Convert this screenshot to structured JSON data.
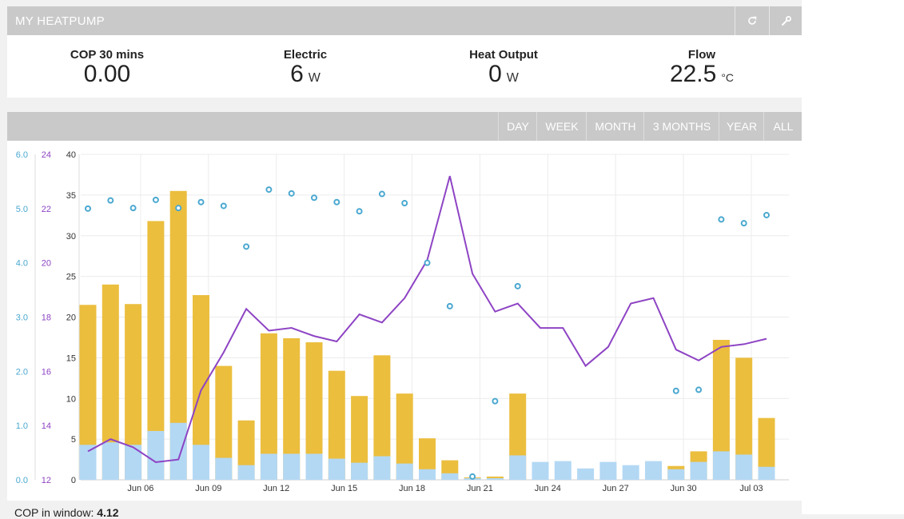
{
  "header": {
    "title": "MY HEATPUMP",
    "refresh_icon": "refresh-icon",
    "settings_icon": "wrench-icon"
  },
  "stats": [
    {
      "label": "COP 30 mins",
      "value": "0.00",
      "unit": ""
    },
    {
      "label": "Electric",
      "value": "6",
      "unit": "W"
    },
    {
      "label": "Heat Output",
      "value": "0",
      "unit": "W"
    },
    {
      "label": "Flow",
      "value": "22.5",
      "unit": "°C"
    }
  ],
  "ranges": [
    "DAY",
    "WEEK",
    "MONTH",
    "3 MONTHS",
    "YEAR",
    "ALL"
  ],
  "footer": {
    "label": "COP in window:",
    "value": "4.12"
  },
  "colors": {
    "heat": "#ebbe3e",
    "electric": "#b3d8f4",
    "cop": "#4aa8d0",
    "flow": "#8e44c4",
    "axis_cop": "#4aa8d0",
    "axis_flow": "#8e44c4"
  },
  "chart_data": {
    "type": "bar",
    "x_tick_labels": [
      "Jun 06",
      "Jun 09",
      "Jun 12",
      "Jun 15",
      "Jun 18",
      "Jun 21",
      "Jun 24",
      "Jun 27",
      "Jun 30",
      "Jul 03"
    ],
    "x_tick_positions": [
      3,
      6,
      9,
      12,
      15,
      18,
      21,
      24,
      27,
      30
    ],
    "y_kwh": {
      "ticks": [
        0,
        5,
        10,
        15,
        20,
        25,
        30,
        35,
        40
      ],
      "range": [
        0,
        40
      ]
    },
    "y_flow": {
      "ticks": [
        12,
        14,
        16,
        18,
        20,
        22,
        24
      ],
      "range": [
        12,
        24
      ]
    },
    "y_cop": {
      "ticks": [
        "0.0",
        "1.0",
        "2.0",
        "3.0",
        "4.0",
        "5.0",
        "6.0"
      ],
      "range": [
        0,
        6
      ]
    },
    "days": [
      0,
      1,
      2,
      3,
      4,
      5,
      6,
      7,
      8,
      9,
      10,
      11,
      12,
      13,
      14,
      15,
      16,
      17,
      18,
      19,
      20,
      21,
      22,
      23,
      24,
      25,
      26,
      27,
      28,
      29,
      30,
      31
    ],
    "series": [
      {
        "name": "Heat",
        "axis": "kwh",
        "values": [
          21.5,
          24,
          21.6,
          31.8,
          35.5,
          22.7,
          14,
          7.3,
          18,
          17.4,
          16.9,
          13.4,
          10.3,
          15.3,
          10.6,
          5.1,
          2.4,
          0.3,
          0.4,
          10.6,
          0,
          0,
          0,
          0,
          0,
          0,
          1.7,
          3.5,
          17.2,
          15,
          7.6
        ]
      },
      {
        "name": "Electric",
        "axis": "kwh",
        "values": [
          4.3,
          4.6,
          4.3,
          6,
          7,
          4.3,
          2.7,
          1.8,
          3.2,
          3.2,
          3.2,
          2.6,
          2.1,
          2.9,
          2,
          1.3,
          0.8,
          0.2,
          0.2,
          3,
          2.2,
          2.3,
          1.4,
          2.2,
          1.8,
          2.3,
          1.3,
          2.2,
          3.5,
          3.1,
          1.6
        ]
      },
      {
        "name": "COP",
        "axis": "cop",
        "values": [
          5.0,
          5.15,
          5.01,
          5.16,
          5.01,
          5.12,
          5.05,
          4.3,
          5.35,
          5.28,
          5.2,
          5.12,
          4.95,
          5.27,
          5.1,
          4.0,
          3.2,
          0.06,
          1.45,
          3.57,
          null,
          null,
          null,
          null,
          null,
          null,
          1.64,
          1.66,
          4.8,
          4.73,
          4.88
        ],
        "x": [
          0,
          1,
          2,
          3,
          4,
          5,
          6,
          7,
          8,
          9,
          10,
          11,
          12,
          13,
          14,
          15,
          16,
          17,
          18,
          19,
          20,
          21,
          22,
          23,
          24,
          25,
          26,
          27,
          28,
          29,
          30
        ]
      },
      {
        "name": "Flow temp",
        "axis": "flow",
        "x": [
          0,
          1,
          2,
          3,
          4,
          5,
          6,
          7,
          8,
          9,
          10,
          11,
          12,
          13,
          14,
          15,
          16,
          17,
          18,
          19,
          20,
          21,
          22,
          23,
          24,
          25,
          26,
          27,
          28,
          29,
          30
        ],
        "values": [
          13.05,
          13.5,
          13.2,
          12.65,
          12.75,
          15.3,
          16.7,
          18.3,
          17.5,
          17.6,
          17.3,
          17.1,
          18.1,
          17.8,
          18.7,
          20.1,
          23.2,
          19.6,
          18.2,
          18.5,
          17.6,
          17.6,
          16.2,
          16.9,
          18.5,
          18.7,
          16.8,
          16.4,
          16.9,
          17.0,
          17.2
        ],
        "x_fix": "flow values plotted per day"
      }
    ]
  }
}
